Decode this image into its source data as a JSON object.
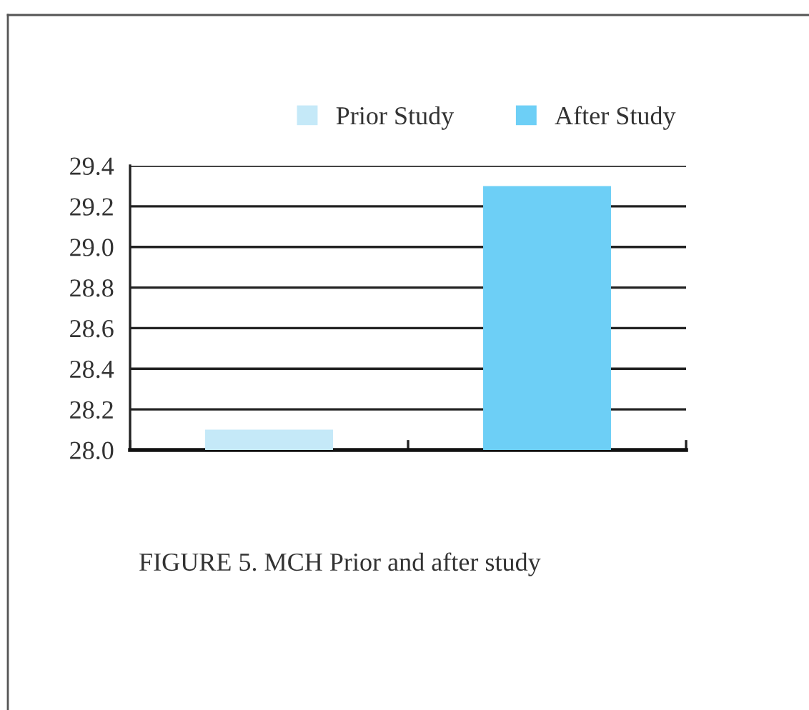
{
  "chart_data": {
    "type": "bar",
    "categories": [
      null,
      null
    ],
    "series": [
      {
        "name": "Prior Study",
        "color": "#c5e9f8",
        "values": [
          28.1,
          null
        ]
      },
      {
        "name": "After Study",
        "color": "#6dcff6",
        "values": [
          null,
          29.3
        ]
      }
    ],
    "ylim": [
      28.0,
      29.4
    ],
    "yticks": [
      {
        "value": 28.0,
        "label": "28.0"
      },
      {
        "value": 28.2,
        "label": "28.2"
      },
      {
        "value": 28.4,
        "label": "28.4"
      },
      {
        "value": 28.6,
        "label": "28.6"
      },
      {
        "value": 28.8,
        "label": "28.8"
      },
      {
        "value": 29.0,
        "label": "29.0"
      },
      {
        "value": 29.2,
        "label": "29.2"
      },
      {
        "value": 29.4,
        "label": "29.4"
      }
    ],
    "grid": "y",
    "legend": "top right",
    "tick_labels": "y",
    "annotations": [
      "FIGURE 5. MCH Prior and after study"
    ]
  }
}
